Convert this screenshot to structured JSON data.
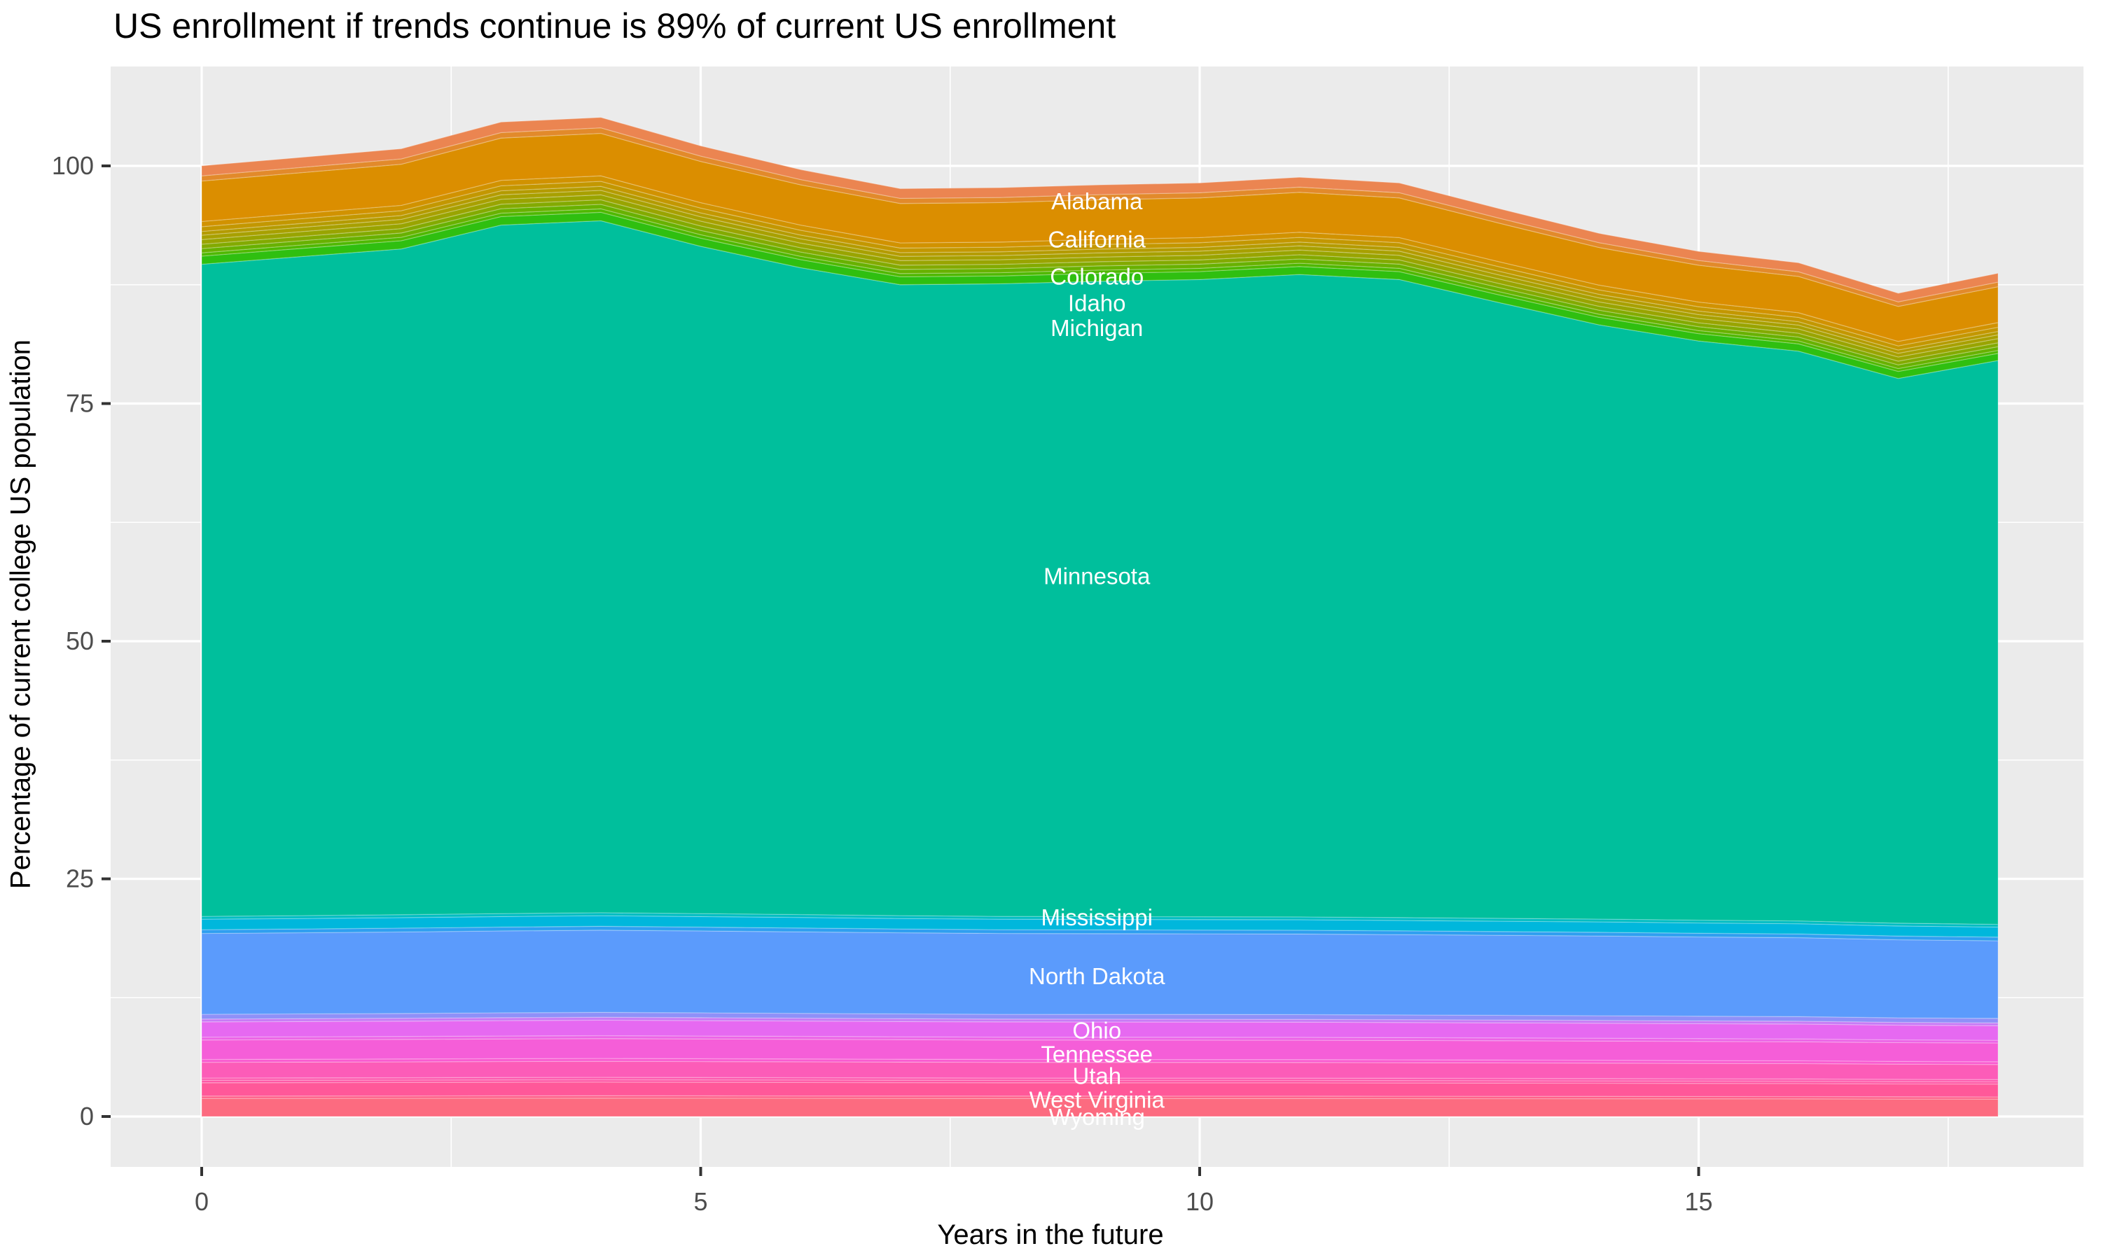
{
  "title": "US enrollment if trends continue is 89% of current US enrollment",
  "axes": {
    "x": {
      "title": "Years in the future",
      "tick_labels": [
        "0",
        "5",
        "10",
        "15"
      ],
      "tick_values": [
        0,
        5,
        10,
        15
      ],
      "minor_values": [
        2.5,
        7.5,
        12.5,
        17.5
      ],
      "data_range": [
        0,
        18
      ]
    },
    "y": {
      "title": "Percentage of current college US population",
      "tick_labels": [
        "0",
        "25",
        "50",
        "75",
        "100"
      ],
      "tick_values": [
        0,
        25,
        50,
        75,
        100
      ],
      "minor_values": [
        12.5,
        37.5,
        62.5,
        87.5
      ]
    }
  },
  "colors": {
    "panel_background": "#EBEBEB",
    "gridline": "#FFFFFF",
    "tick_text": "#4D4D4D",
    "tick_mark": "#333333",
    "state_label_text": "#FFFFFF",
    "title_text": "#000000"
  },
  "chart_data": {
    "type": "area",
    "stacked": true,
    "grid": true,
    "legend": false,
    "title": "US enrollment if trends continue is 89% of current US enrollment",
    "xlabel": "Years in the future",
    "ylabel": "Percentage of current college US population",
    "x": [
      0,
      1,
      2,
      3,
      4,
      5,
      6,
      7,
      8,
      9,
      10,
      11,
      12,
      13,
      14,
      15,
      16,
      17,
      18
    ],
    "stack_top_total": [
      100,
      100.9,
      101.8,
      104.6,
      105.1,
      102.1,
      99.6,
      97.6,
      97.7,
      98,
      98.2,
      98.8,
      98.2,
      95.5,
      92.9,
      91,
      89.8,
      86.6,
      88.7
    ],
    "group_totals": {
      "bottom": [
        21.05,
        21.13,
        21.22,
        21.34,
        21.43,
        21.34,
        21.24,
        21.13,
        21.05,
        21.03,
        21.01,
        20.99,
        20.92,
        20.84,
        20.76,
        20.65,
        20.57,
        20.33,
        20.21
      ],
      "top": [
        10.35,
        10.44,
        10.54,
        10.83,
        10.88,
        10.57,
        10.31,
        10.1,
        10.11,
        10.14,
        10.16,
        10.23,
        10.16,
        9.88,
        9.62,
        9.42,
        9.29,
        8.96,
        9.18
      ]
    },
    "series": [
      {
        "name": "Wyoming",
        "color": "#FC6B80",
        "group": "bottom",
        "share": 0.0902,
        "labeled": true
      },
      {
        "name": "unlabeled-1",
        "color": "#FE6188",
        "group": "bottom",
        "share": 0.0119,
        "labeled": false
      },
      {
        "name": "West Virginia",
        "color": "#FF5899",
        "group": "bottom",
        "share": 0.0665,
        "labeled": true
      },
      {
        "name": "unlabeled-2",
        "color": "#FE59A6",
        "group": "bottom",
        "share": 0.0119,
        "labeled": false
      },
      {
        "name": "unlabeled-3",
        "color": "#FD5BAE",
        "group": "bottom",
        "share": 0.0119,
        "labeled": false
      },
      {
        "name": "Utah",
        "color": "#FC5CB8",
        "group": "bottom",
        "share": 0.0784,
        "labeled": true
      },
      {
        "name": "unlabeled-4",
        "color": "#F95CD0",
        "group": "bottom",
        "share": 0.0143,
        "labeled": false
      },
      {
        "name": "Tennessee",
        "color": "#F55ED8",
        "group": "bottom",
        "share": 0.0974,
        "labeled": true
      },
      {
        "name": "unlabeled-5",
        "color": "#EC64E6",
        "group": "bottom",
        "share": 0.0143,
        "labeled": false
      },
      {
        "name": "Ohio",
        "color": "#E669F1",
        "group": "bottom",
        "share": 0.076,
        "labeled": true
      },
      {
        "name": "unlabeled-6",
        "color": "#C77BF5",
        "group": "bottom",
        "share": 0.0143,
        "labeled": false
      },
      {
        "name": "unlabeled-7",
        "color": "#8F90F8",
        "group": "bottom",
        "share": 0.0238,
        "labeled": false
      },
      {
        "name": "North Dakota",
        "color": "#5B9BFC",
        "group": "bottom",
        "share": 0.4038,
        "labeled": true
      },
      {
        "name": "unlabeled-8",
        "color": "#2F9FF0",
        "group": "bottom",
        "share": 0.019,
        "labeled": false
      },
      {
        "name": "Mississippi",
        "color": "#00B7DC",
        "group": "bottom",
        "share": 0.0523,
        "labeled": true
      },
      {
        "name": "unlabeled-9",
        "color": "#00BDC2",
        "group": "bottom",
        "share": 0.0143,
        "labeled": false
      },
      {
        "name": "Minnesota",
        "color": "#00BF9C",
        "group": "self",
        "labeled": true,
        "values": [
          68.6,
          69.33,
          70.04,
          72.43,
          72.79,
          70.19,
          68.05,
          66.37,
          66.54,
          66.83,
          67.03,
          67.58,
          67.12,
          64.78,
          62.52,
          60.93,
          59.94,
          57.31,
          59.31
        ]
      },
      {
        "name": "Michigan",
        "color": "#2FBF10",
        "group": "top",
        "share": 0.0821,
        "labeled": true
      },
      {
        "name": "unlabeled-10",
        "color": "#4FB800",
        "group": "top",
        "share": 0.0338,
        "labeled": false
      },
      {
        "name": "unlabeled-11",
        "color": "#68B100",
        "group": "top",
        "share": 0.0435,
        "labeled": false
      },
      {
        "name": "unlabeled-12",
        "color": "#83AA00",
        "group": "top",
        "share": 0.0435,
        "labeled": false
      },
      {
        "name": "Idaho",
        "color": "#99A400",
        "group": "top",
        "share": 0.0483,
        "labeled": true
      },
      {
        "name": "unlabeled-13",
        "color": "#A8A000",
        "group": "top",
        "share": 0.0435,
        "labeled": false
      },
      {
        "name": "unlabeled-14",
        "color": "#B49B00",
        "group": "top",
        "share": 0.0386,
        "labeled": false
      },
      {
        "name": "unlabeled-15",
        "color": "#C39700",
        "group": "top",
        "share": 0.0483,
        "labeled": false
      },
      {
        "name": "Colorado",
        "color": "#D19200",
        "group": "top",
        "share": 0.0531,
        "labeled": true
      },
      {
        "name": "California",
        "color": "#DB8E00",
        "group": "top",
        "share": 0.4108,
        "labeled": true
      },
      {
        "name": "unlabeled-16",
        "color": "#E28A2B",
        "group": "top",
        "share": 0.0531,
        "labeled": false
      },
      {
        "name": "Alabama",
        "color": "#EB8551",
        "group": "top",
        "share": 0.1014,
        "labeled": true
      }
    ],
    "state_labels": [
      {
        "text": "Alabama",
        "x": 8.97,
        "y": 96.3
      },
      {
        "text": "California",
        "x": 8.97,
        "y": 92.3
      },
      {
        "text": "Colorado",
        "x": 8.97,
        "y": 88.4
      },
      {
        "text": "Idaho",
        "x": 8.97,
        "y": 85.6
      },
      {
        "text": "Michigan",
        "x": 8.97,
        "y": 83.0
      },
      {
        "text": "Minnesota",
        "x": 8.97,
        "y": 56.9
      },
      {
        "text": "Mississippi",
        "x": 8.97,
        "y": 21.0
      },
      {
        "text": "North Dakota",
        "x": 8.97,
        "y": 14.8
      },
      {
        "text": "Ohio",
        "x": 8.97,
        "y": 9.1
      },
      {
        "text": "Tennessee",
        "x": 8.97,
        "y": 6.6
      },
      {
        "text": "Utah",
        "x": 8.97,
        "y": 4.3
      },
      {
        "text": "West Virginia",
        "x": 8.97,
        "y": 1.8
      },
      {
        "text": "Wyoming",
        "x": 8.97,
        "y": 0.0
      }
    ]
  }
}
